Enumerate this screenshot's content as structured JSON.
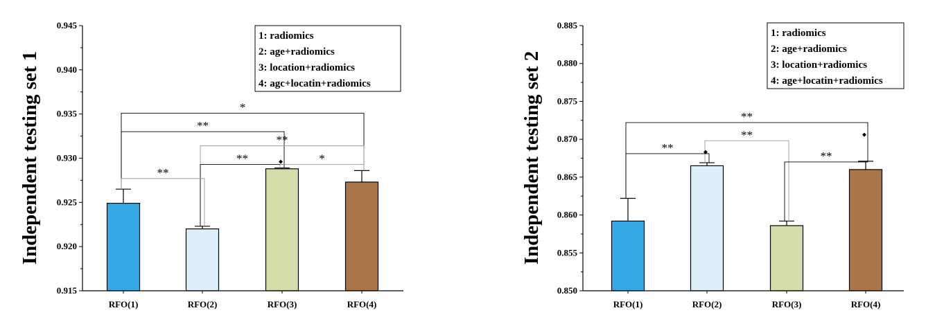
{
  "chart_data": [
    {
      "type": "bar",
      "ylabel": "Independent testing set 1",
      "ylim": [
        0.915,
        0.945
      ],
      "yticks": [
        "0.915",
        "0.920",
        "0.925",
        "0.930",
        "0.935",
        "0.940",
        "0.945"
      ],
      "categories": [
        "RFO(1)",
        "RFO(2)",
        "RFO(3)",
        "RFO(4)"
      ],
      "values": [
        0.9249,
        0.922,
        0.9288,
        0.9273
      ],
      "errors": [
        0.0016,
        0.0003,
        0.0001,
        0.0013
      ],
      "colors": [
        "#35A9E6",
        "#DDF0FA",
        "#D4DDA9",
        "#A9764A"
      ],
      "legend": [
        "1: radiomics",
        "2: age+radiomics",
        "3: location+radiomics",
        "4: agc+locatin+radiomics"
      ],
      "significance": [
        {
          "from": 0,
          "to": 3,
          "label": "*",
          "y": 0.9351,
          "gray": false
        },
        {
          "from": 0,
          "to": 2,
          "label": "**",
          "y": 0.933,
          "gray": false
        },
        {
          "from": 1,
          "to": 3,
          "label": "**",
          "y": 0.9314,
          "gray": true
        },
        {
          "from": 1,
          "to": 2,
          "label": "**",
          "y": 0.9293,
          "gray": false
        },
        {
          "from": 2,
          "to": 3,
          "label": "*",
          "y": 0.9293,
          "gray": true
        },
        {
          "from": 0,
          "to": 1,
          "label": "**",
          "y": 0.9277,
          "gray": true
        }
      ],
      "markers": [
        {
          "bar": 2,
          "y": 0.9296
        }
      ]
    },
    {
      "type": "bar",
      "ylabel": "Independent testing set 2",
      "ylim": [
        0.85,
        0.885
      ],
      "yticks": [
        "0.850",
        "0.855",
        "0.860",
        "0.865",
        "0.870",
        "0.875",
        "0.880",
        "0.885"
      ],
      "categories": [
        "RFO(1)",
        "RFO(2)",
        "RFO(3)",
        "RFO(4)"
      ],
      "values": [
        0.8592,
        0.8665,
        0.8586,
        0.866
      ],
      "errors": [
        0.003,
        0.0004,
        0.0006,
        0.0011
      ],
      "colors": [
        "#35A9E6",
        "#DDF0FA",
        "#D4DDA9",
        "#A9764A"
      ],
      "legend": [
        "1: radiomics",
        "2: age+radiomics",
        "3: location+radiomics",
        "4: age+locatin+radiomics"
      ],
      "significance": [
        {
          "from": 0,
          "to": 3,
          "label": "**",
          "y": 0.8722,
          "gray": false
        },
        {
          "from": 1,
          "to": 2,
          "label": "**",
          "y": 0.8698,
          "gray": true
        },
        {
          "from": 0,
          "to": 1,
          "label": "**",
          "y": 0.8681,
          "gray": false
        },
        {
          "from": 2,
          "to": 3,
          "label": "**",
          "y": 0.867,
          "gray": false
        }
      ],
      "markers": [
        {
          "bar": 1,
          "y": 0.8683
        },
        {
          "bar": 3,
          "y": 0.8706
        }
      ]
    }
  ]
}
